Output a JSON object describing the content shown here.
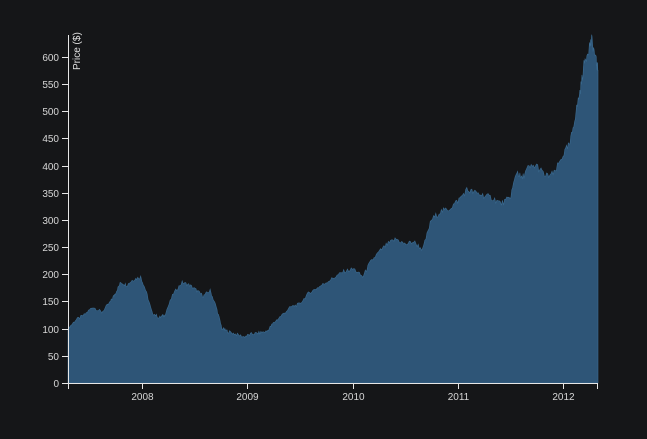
{
  "chart_data": {
    "type": "area",
    "title": "",
    "xlabel": "",
    "ylabel": "Price ($)",
    "xlim": [
      "2007-04-20",
      "2012-05-01"
    ],
    "ylim": [
      0,
      640
    ],
    "x_ticks": [
      "2008",
      "2009",
      "2010",
      "2011",
      "2012"
    ],
    "y_ticks": [
      0,
      50,
      100,
      150,
      200,
      250,
      300,
      350,
      400,
      450,
      500,
      550,
      600
    ],
    "grid": false,
    "legend": "none",
    "fill_color": "#2e5577",
    "stroke_color": "#3a6a90",
    "background_color": "#151618",
    "axis_color": "#e6e6e6",
    "series": [
      {
        "x": [
          "2007-04-20",
          "2007-05-15",
          "2007-06-15",
          "2007-07-15",
          "2007-08-15",
          "2007-09-15",
          "2007-10-01",
          "2007-10-20",
          "2007-11-10",
          "2007-12-01",
          "2007-12-28",
          "2008-01-15",
          "2008-02-05",
          "2008-03-01",
          "2008-03-20",
          "2008-04-20",
          "2008-05-20",
          "2008-06-15",
          "2008-07-10",
          "2008-08-01",
          "2008-08-25",
          "2008-09-15",
          "2008-10-05",
          "2008-10-25",
          "2008-11-20",
          "2008-12-20",
          "2009-01-15",
          "2009-02-10",
          "2009-03-10",
          "2009-04-01",
          "2009-05-01",
          "2009-06-01",
          "2009-07-01",
          "2009-08-01",
          "2009-09-01",
          "2009-10-01",
          "2009-11-01",
          "2009-12-01",
          "2010-01-05",
          "2010-02-05",
          "2010-03-01",
          "2010-04-01",
          "2010-05-01",
          "2010-06-01",
          "2010-07-01",
          "2010-08-01",
          "2010-09-01",
          "2010-10-01",
          "2010-11-01",
          "2010-12-01",
          "2011-01-01",
          "2011-02-01",
          "2011-03-01",
          "2011-04-01",
          "2011-05-01",
          "2011-06-01",
          "2011-07-01",
          "2011-07-25",
          "2011-08-10",
          "2011-09-01",
          "2011-10-01",
          "2011-11-01",
          "2011-12-01",
          "2012-01-01",
          "2012-01-25",
          "2012-02-15",
          "2012-03-01",
          "2012-03-15",
          "2012-04-01",
          "2012-04-10",
          "2012-04-25",
          "2012-05-01"
        ],
        "values": [
          100,
          115,
          125,
          140,
          130,
          150,
          165,
          185,
          180,
          190,
          195,
          170,
          130,
          120,
          125,
          165,
          185,
          180,
          170,
          160,
          170,
          140,
          100,
          95,
          90,
          85,
          90,
          92,
          95,
          110,
          125,
          140,
          145,
          165,
          175,
          185,
          195,
          205,
          210,
          195,
          220,
          240,
          255,
          265,
          255,
          260,
          245,
          300,
          315,
          320,
          335,
          355,
          350,
          345,
          340,
          330,
          340,
          390,
          375,
          395,
          400,
          380,
          385,
          420,
          440,
          500,
          540,
          590,
          620,
          630,
          590,
          575
        ]
      }
    ]
  }
}
